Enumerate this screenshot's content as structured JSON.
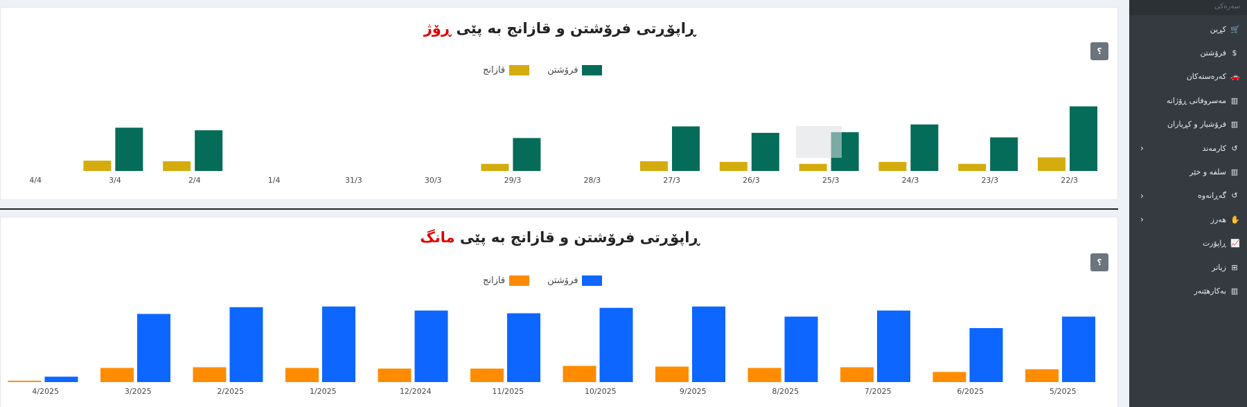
{
  "day_report": {
    "title_main": "ڕاپۆڕتی فرۆشتن و قازانج بە پێی",
    "title_accent": "ڕۆژ",
    "help_label": "؟",
    "legend": {
      "sales": "فرۆشتن",
      "profit": "قازانج"
    },
    "colors": {
      "sales": "#046c58",
      "profit": "#d4ac0d"
    }
  },
  "month_report": {
    "title_main": "ڕاپۆڕتی فرۆشتن و قازانج بە پێی",
    "title_accent": "مانگ",
    "help_label": "؟",
    "legend": {
      "sales": "فرۆشتن",
      "profit": "قازانج"
    },
    "colors": {
      "sales": "#0d66ff",
      "profit": "#ff8c00"
    }
  },
  "chart_data": [
    {
      "type": "bar",
      "categories": [
        "22/3",
        "23/3",
        "24/3",
        "25/3",
        "26/3",
        "27/3",
        "28/3",
        "29/3",
        "30/3",
        "31/3",
        "1/4",
        "2/4",
        "3/4",
        "4/4"
      ],
      "series": [
        {
          "name": "فرۆشتن",
          "values": [
            100,
            52,
            72,
            60,
            59,
            69,
            0,
            51,
            0,
            0,
            0,
            63,
            67,
            0
          ]
        },
        {
          "name": "قازانج",
          "values": [
            21,
            11,
            14,
            11,
            14,
            15,
            0,
            11,
            0,
            0,
            0,
            15,
            16,
            0
          ]
        }
      ],
      "ylim": [
        0,
        120
      ],
      "grid": false,
      "legend_position": "top"
    },
    {
      "type": "bar",
      "categories": [
        "5/2025",
        "6/2025",
        "7/2025",
        "8/2025",
        "9/2025",
        "10/2025",
        "11/2025",
        "12/2024",
        "1/2025",
        "2/2025",
        "3/2025",
        "4/2025"
      ],
      "series": [
        {
          "name": "فرۆشتن",
          "values": [
            97,
            80,
            106,
            97,
            112,
            110,
            102,
            106,
            112,
            111,
            101,
            8
          ]
        },
        {
          "name": "قازانج",
          "values": [
            19,
            15,
            22,
            21,
            23,
            24,
            20,
            20,
            21,
            22,
            21,
            2
          ]
        }
      ],
      "ylim": [
        0,
        120
      ],
      "grid": false,
      "legend_position": "top"
    }
  ],
  "sidebar": {
    "search_label": "سەرەکی",
    "items": [
      {
        "label": "کڕین",
        "icon": "cart-icon",
        "glyph": "🛒",
        "has_children": false
      },
      {
        "label": "فرۆشتن",
        "icon": "dollar-icon",
        "glyph": "$",
        "has_children": false
      },
      {
        "label": "کەرەستەکان",
        "icon": "car-icon",
        "glyph": "🚗",
        "has_children": false
      },
      {
        "label": "مەسروفاتی ڕۆژانە",
        "icon": "building-icon",
        "glyph": "▥",
        "has_children": false
      },
      {
        "label": "فرۆشیار و کڕیاران",
        "icon": "building-icon",
        "glyph": "▥",
        "has_children": false
      },
      {
        "label": "کارمەند",
        "icon": "history-icon",
        "glyph": "↺",
        "has_children": true
      },
      {
        "label": "سلفە و خێر",
        "icon": "building-icon",
        "glyph": "▥",
        "has_children": false
      },
      {
        "label": "گەڕانەوە",
        "icon": "history-icon",
        "glyph": "↺",
        "has_children": true
      },
      {
        "label": "هەرز",
        "icon": "hand-icon",
        "glyph": "✋",
        "has_children": true
      },
      {
        "label": "ڕاپۆرت",
        "icon": "chart-line-icon",
        "glyph": "📈",
        "has_children": false
      },
      {
        "label": "زیاتر",
        "icon": "sitemap-icon",
        "glyph": "⊞",
        "has_children": false
      },
      {
        "label": "بەکارهێنەر",
        "icon": "building-icon",
        "glyph": "▥",
        "has_children": false
      }
    ]
  }
}
